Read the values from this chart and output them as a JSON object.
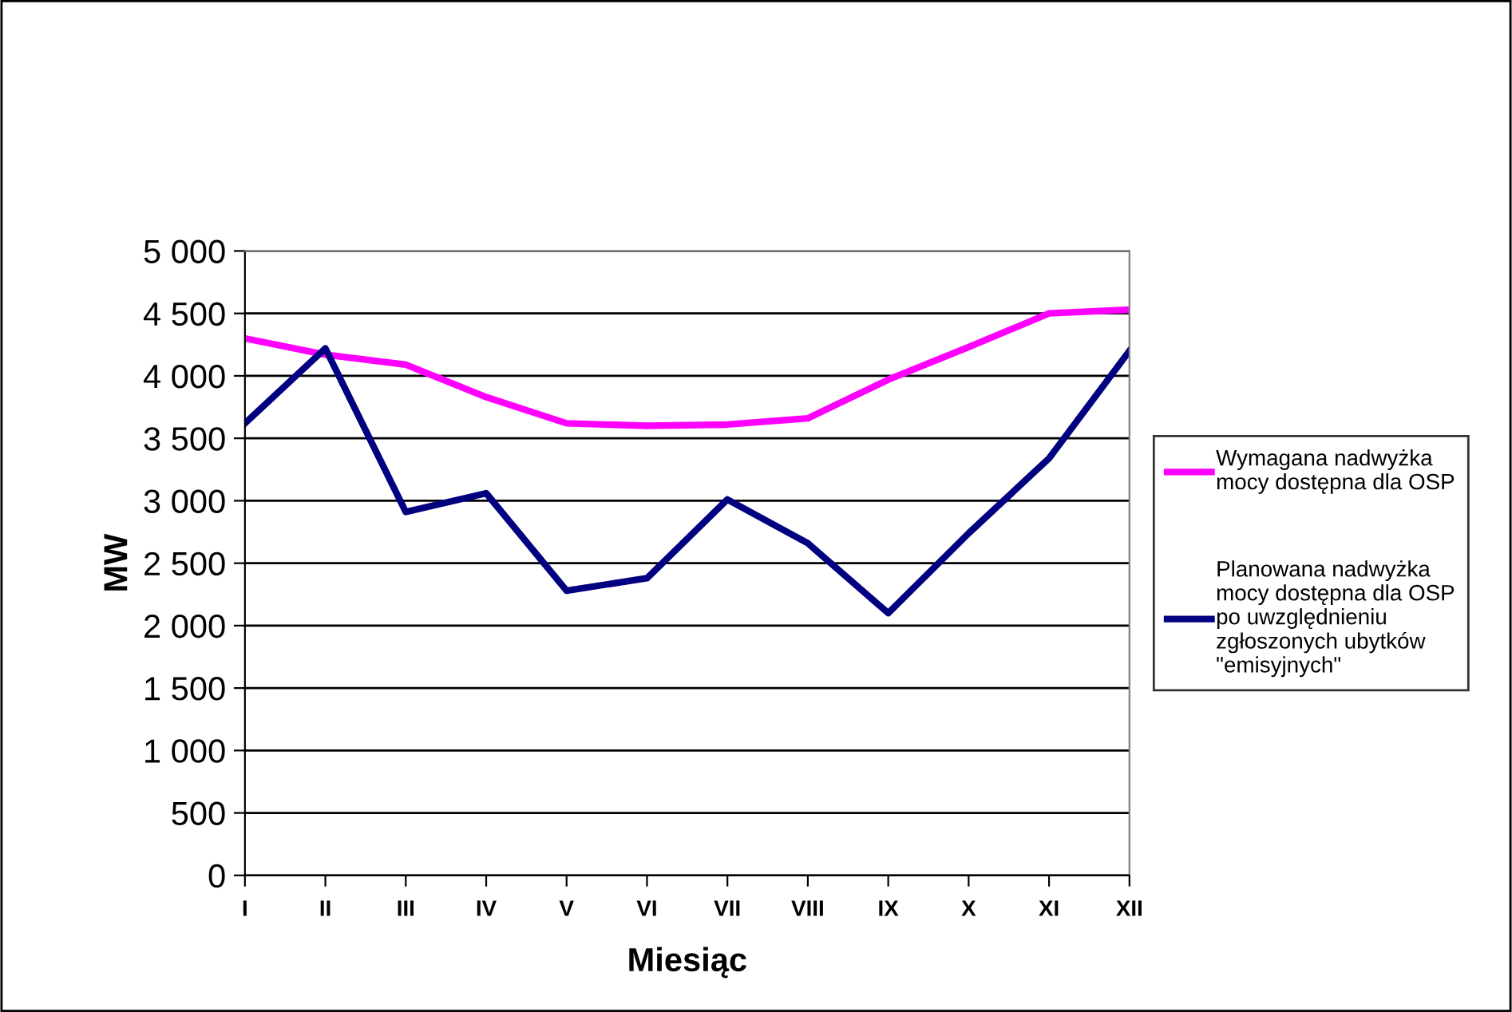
{
  "chart_data": {
    "type": "line",
    "xlabel": "Miesiąc",
    "ylabel": "MW",
    "categories": [
      "I",
      "II",
      "III",
      "IV",
      "V",
      "VI",
      "VII",
      "VIII",
      "IX",
      "X",
      "XI",
      "XII"
    ],
    "series": [
      {
        "name": "Wymagana nadwyżka mocy dostępna dla OSP",
        "color": "#ff00ff",
        "values": [
          4300,
          4170,
          4090,
          3830,
          3620,
          3600,
          3610,
          3660,
          3970,
          4230,
          4500,
          4530
        ]
      },
      {
        "name": "Planowana nadwyżka mocy dostępna dla OSP po uwzględnieniu zgłoszonych ubytków \"emisyjnych\"",
        "color": "#000080",
        "values": [
          3620,
          4220,
          2910,
          3060,
          2280,
          2380,
          3010,
          2660,
          2100,
          2740,
          3340,
          4200
        ]
      }
    ],
    "ylim": [
      0,
      5000
    ],
    "yticks": [
      0,
      500,
      {
        "value": 1000,
        "label": "1 000"
      },
      {
        "value": 1500,
        "label": "1 500"
      },
      {
        "value": 2000,
        "label": "2 000"
      },
      {
        "value": 2500,
        "label": "2 500"
      },
      {
        "value": 3000,
        "label": "3 000"
      },
      {
        "value": 3500,
        "label": "3 500"
      },
      {
        "value": 4000,
        "label": "4 000"
      },
      {
        "value": 4500,
        "label": "4 500"
      },
      {
        "value": 5000,
        "label": "5 000"
      }
    ],
    "grid": "y",
    "legend": "right",
    "marker": "none",
    "line_style": "solid"
  }
}
